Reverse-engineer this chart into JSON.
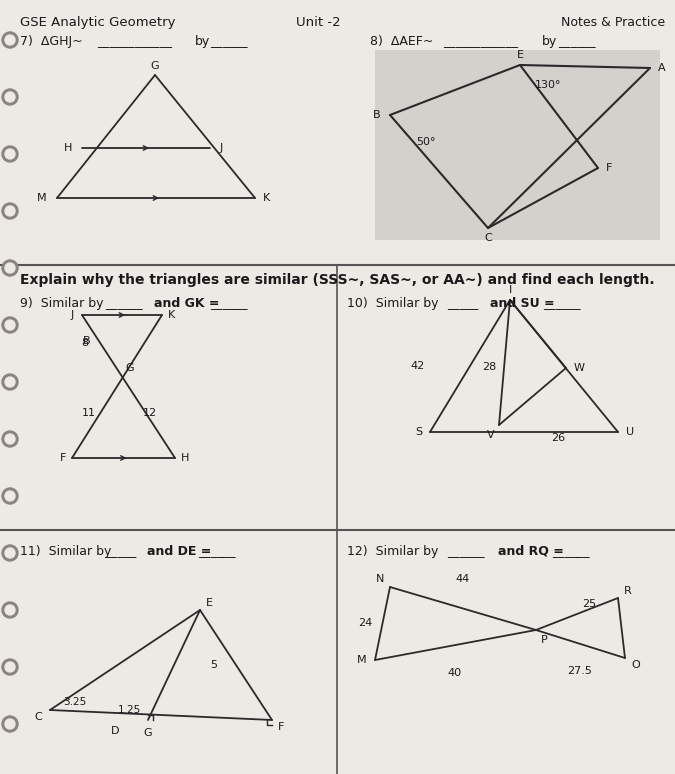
{
  "paper_color": "#ede9e4",
  "gray_box_color": "#d4d0cc",
  "line_color": "#2a2a2a",
  "label_color": "#1a1a1a",
  "divider_color": "#555555",
  "spiral_color": "#9a9590",
  "title_top_right": "Notes & Practice",
  "title_top_left": "GSE Analytic Geometry",
  "unit": "Unit -2",
  "q7_label": "7)  ΔGHJ~",
  "q7_by": "by",
  "q8_label": "8)  ΔAEF~",
  "q8_by": "by",
  "explain_text": "Explain why the triangles are similar (SSS~, SAS~, or AA~) and find each length.",
  "q9_label": "9)  Similar by",
  "q9_end": "and GK =",
  "q10_label": "10)  Similar by",
  "q10_end": "and SU =",
  "q11_label": "11)  Similar by",
  "q11_end": "and DE =",
  "q12_label": "12)  Similar by",
  "q12_end": "and RQ ="
}
